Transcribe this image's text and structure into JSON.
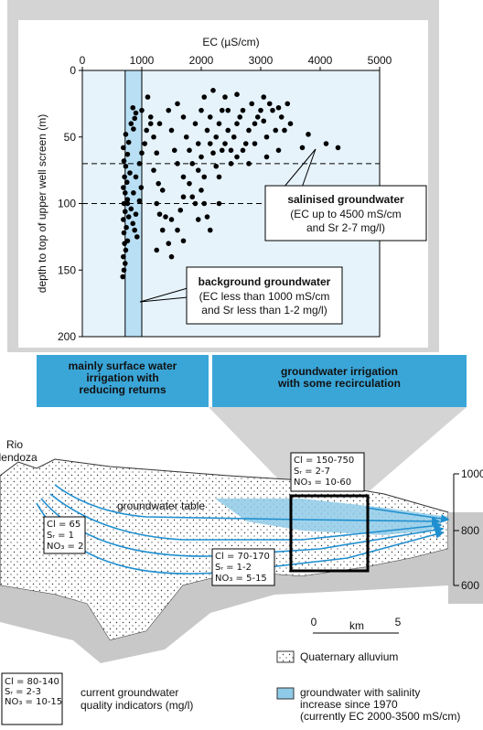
{
  "chart_data": {
    "type": "scatter",
    "title": "EC (µS/cm)",
    "y_label": "depth to top of upper well screen (m)",
    "xlim": [
      0,
      5000
    ],
    "xticks": [
      0,
      1000,
      2000,
      3000,
      4000,
      5000
    ],
    "ylim": [
      0,
      200
    ],
    "yticks": [
      0,
      50,
      100,
      150,
      200
    ],
    "y_inverted": true,
    "shaded_range": [
      720,
      1000
    ],
    "hlines": [
      70,
      100
    ],
    "color": "#000000",
    "x": [
      680,
      700,
      720,
      690,
      730,
      710,
      760,
      700,
      740,
      690,
      780,
      720,
      700,
      760,
      720,
      690,
      750,
      710,
      800,
      730,
      700,
      760,
      690,
      780,
      730,
      860,
      820,
      880,
      900,
      850,
      760,
      820,
      900,
      850,
      880,
      920,
      960,
      990,
      860,
      900,
      960,
      1000,
      1050,
      1080,
      1000,
      1100,
      1150,
      1200,
      1250,
      1300,
      1200,
      1280,
      1350,
      1250,
      1300,
      1400,
      1350,
      1500,
      1600,
      1450,
      1500,
      1700,
      1800,
      1850,
      1900,
      1950,
      1700,
      1600,
      1550,
      1500,
      1450,
      1600,
      1700,
      1750,
      1800,
      1850,
      1900,
      1950,
      2000,
      2050,
      2100,
      2150,
      2200,
      2250,
      2300,
      2350,
      2400,
      2450,
      2500,
      2550,
      2600,
      2650,
      2700,
      2750,
      2800,
      2850,
      2900,
      2950,
      3000,
      3050,
      3100,
      3150,
      3200,
      3250,
      3300,
      3350,
      3400,
      3450,
      3500,
      3050,
      2200,
      2400,
      2600,
      2000,
      2050,
      2100,
      2150,
      2050,
      2250,
      1950,
      2300,
      2500,
      3800,
      4100,
      4300,
      3700,
      2800,
      2600,
      2300,
      1250,
      1150,
      1650,
      1700,
      2000,
      2150,
      2350,
      2450,
      2700,
      2900,
      3100,
      3300
    ],
    "y": [
      155,
      150,
      145,
      140,
      135,
      130,
      128,
      122,
      118,
      112,
      110,
      106,
      100,
      97,
      92,
      88,
      84,
      80,
      77,
      72,
      68,
      63,
      58,
      54,
      48,
      44,
      40,
      36,
      32,
      28,
      100,
      104,
      108,
      115,
      120,
      125,
      98,
      88,
      92,
      80,
      70,
      62,
      55,
      45,
      30,
      20,
      35,
      50,
      62,
      40,
      75,
      85,
      90,
      100,
      108,
      110,
      120,
      112,
      120,
      130,
      140,
      128,
      85,
      95,
      100,
      112,
      80,
      70,
      60,
      45,
      30,
      25,
      35,
      50,
      60,
      70,
      40,
      55,
      30,
      20,
      45,
      35,
      62,
      50,
      40,
      30,
      55,
      45,
      60,
      50,
      40,
      35,
      60,
      55,
      70,
      25,
      40,
      35,
      30,
      38,
      50,
      25,
      30,
      45,
      60,
      35,
      45,
      25,
      40,
      20,
      15,
      20,
      18,
      90,
      100,
      110,
      120,
      80,
      72,
      75,
      80,
      70,
      48,
      55,
      58,
      58,
      45,
      65,
      100,
      135,
      40,
      105,
      95,
      65,
      55,
      60,
      30,
      30,
      55,
      65,
      28
    ],
    "annotations": [
      {
        "title": "salinised groundwater",
        "lines": [
          "(EC up to 4500 mS/cm",
          "and Sr 2-7 mg/l)"
        ]
      },
      {
        "title": "background groundwater",
        "lines": [
          "(EC less than 1000 mS/cm",
          "and Sr less than 1-2 mg/l)"
        ]
      }
    ]
  },
  "diagram": {
    "zones": [
      [
        "mainly surface water",
        "irrigation with",
        "reducing returns"
      ],
      [
        "groundwater irrigation",
        "with some recirculation"
      ]
    ],
    "river": [
      "Rio",
      "Mendoza"
    ],
    "water_table": "groundwater table",
    "boxes": [
      [
        "Cl = 65",
        "Sᵣ = 1",
        "NO₃ = 2"
      ],
      [
        "Cl = 70-170",
        "Sᵣ = 1-2",
        "NO₃ = 5-15"
      ],
      [
        "Cl = 150-750",
        "Sᵣ = 2-7",
        "NO₃ = 10-60"
      ]
    ],
    "elevations": [
      "1000",
      "800",
      "600"
    ],
    "scale": [
      "0",
      "km",
      "5"
    ],
    "legend": {
      "alluvium": "Quaternary alluvium",
      "salinity": [
        "groundwater with salinity",
        "increase since 1970",
        "(currently EC 2000-3500 mS/cm)"
      ],
      "example": [
        "Cl = 80-140",
        "Sᵣ = 2-3",
        "NO₃ = 10-15"
      ],
      "indicators": [
        "current groundwater",
        "quality indicators (mg/l)"
      ]
    }
  }
}
